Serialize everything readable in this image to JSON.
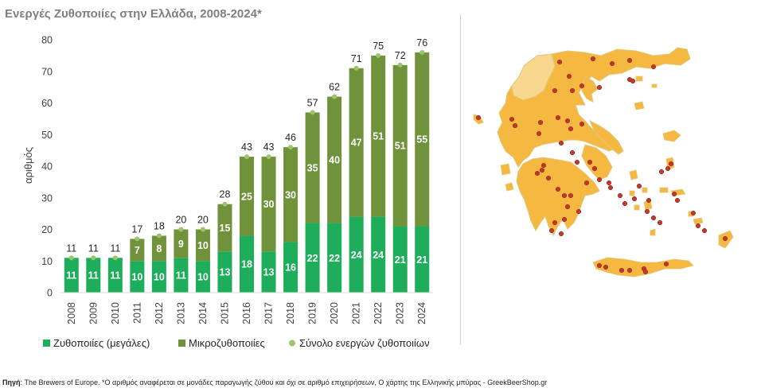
{
  "chart_data": {
    "type": "bar",
    "title": "Ενεργές Ζυθοποιίες στην Ελλάδα, 2008-2024*",
    "ylabel": "αριθμός",
    "xlabel": "",
    "ylim": [
      0,
      80
    ],
    "yticks": [
      0,
      10,
      20,
      30,
      40,
      50,
      60,
      70,
      80
    ],
    "categories": [
      "2008",
      "2009",
      "2010",
      "2011",
      "2012",
      "2013",
      "2014",
      "2015",
      "2016",
      "2017",
      "2018",
      "2019",
      "2020",
      "2021",
      "2022",
      "2023",
      "2024"
    ],
    "series": [
      {
        "name": "Ζυθοποιίες (μεγάλες)",
        "color": "#1ead5a",
        "values": [
          11,
          11,
          11,
          10,
          10,
          11,
          10,
          13,
          18,
          13,
          16,
          22,
          22,
          24,
          24,
          21,
          21
        ]
      },
      {
        "name": "Μικροζυθοποιίες",
        "color": "#70923a",
        "values": [
          0,
          0,
          0,
          7,
          8,
          9,
          10,
          15,
          25,
          30,
          30,
          35,
          40,
          47,
          51,
          51,
          55
        ]
      }
    ],
    "totals": {
      "name": "Σύνολο ενεργών ζυθοποιίων",
      "color": "#9bc56a",
      "values": [
        11,
        11,
        11,
        17,
        18,
        20,
        20,
        28,
        43,
        43,
        46,
        57,
        62,
        71,
        75,
        72,
        76
      ]
    },
    "legend_position": "bottom"
  },
  "footer": {
    "source_label": "Πηγή",
    "source_text": ": The Brewers of Europe. *Ο αριθμός αναφέρεται σε μονάδες παραγωγής ζύθου και όχι σε αριθμό επιχειρήσεων, Ο χάρτης της Ελληνικής μπύρας - GreekBeerShop.gr"
  },
  "map": {
    "land_color": "#f5b942",
    "highlight_color": "#f8d88e",
    "border_color": "#e3c57a",
    "sea_detail_color": "#cfe3e8",
    "marker_color": "#c0392b"
  }
}
